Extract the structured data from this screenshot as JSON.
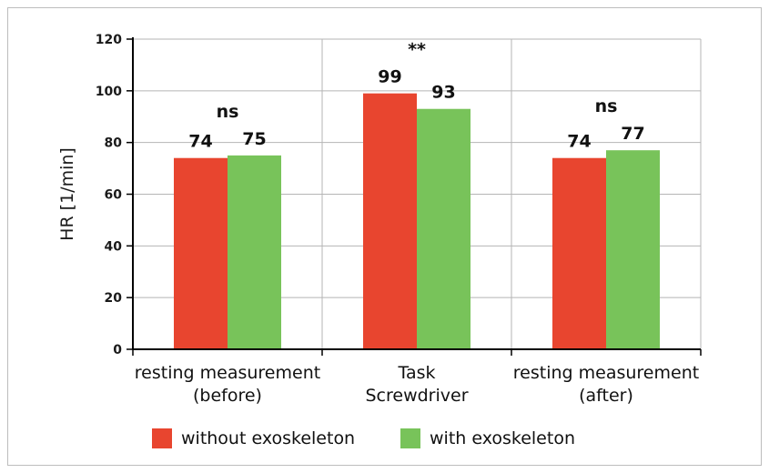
{
  "chart_data": {
    "type": "bar",
    "categories": [
      [
        "resting measurement",
        "(before)"
      ],
      [
        "Task",
        "Screwdriver"
      ],
      [
        "resting measurement",
        "(after)"
      ]
    ],
    "series": [
      {
        "name": "without exoskeleton",
        "color": "#e8452f",
        "values": [
          74,
          99,
          74
        ]
      },
      {
        "name": "with exoskeleton",
        "color": "#78c35a",
        "values": [
          75,
          93,
          77
        ]
      }
    ],
    "bar_labels": [
      [
        "74",
        "75"
      ],
      [
        "99",
        "93"
      ],
      [
        "74",
        "77"
      ]
    ],
    "significance": [
      "ns",
      "**",
      "ns"
    ],
    "ylabel": "HR [1/min]",
    "xlabel": "",
    "ylim": [
      0,
      120
    ],
    "yticks": [
      0,
      20,
      40,
      60,
      80,
      100,
      120
    ],
    "grid": true,
    "legend_position": "bottom"
  }
}
